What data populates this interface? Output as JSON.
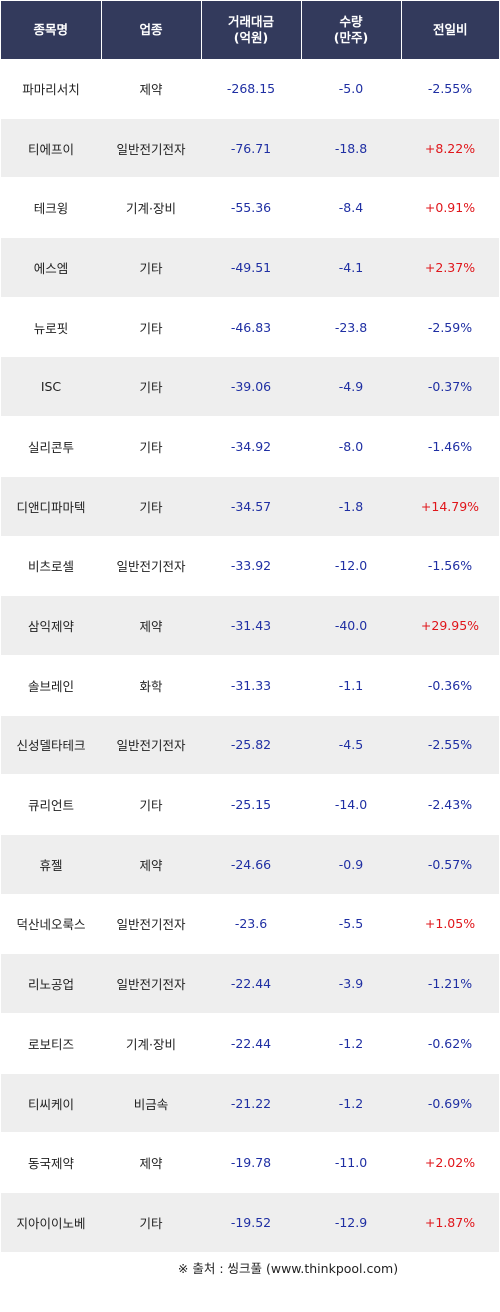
{
  "headers": {
    "name": "종목명",
    "sector": "업종",
    "amount_line1": "거래대금",
    "amount_line2": "(억원)",
    "volume_line1": "수량",
    "volume_line2": "(만주)",
    "change": "전일비"
  },
  "rows": [
    {
      "name": "파마리서치",
      "sector": "제약",
      "amount": "-268.15",
      "volume": "-5.0",
      "change": "-2.55%",
      "dir": "down"
    },
    {
      "name": "티에프이",
      "sector": "일반전기전자",
      "amount": "-76.71",
      "volume": "-18.8",
      "change": "+8.22%",
      "dir": "up"
    },
    {
      "name": "테크윙",
      "sector": "기계·장비",
      "amount": "-55.36",
      "volume": "-8.4",
      "change": "+0.91%",
      "dir": "up"
    },
    {
      "name": "에스엠",
      "sector": "기타",
      "amount": "-49.51",
      "volume": "-4.1",
      "change": "+2.37%",
      "dir": "up"
    },
    {
      "name": "뉴로핏",
      "sector": "기타",
      "amount": "-46.83",
      "volume": "-23.8",
      "change": "-2.59%",
      "dir": "down"
    },
    {
      "name": "ISC",
      "sector": "기타",
      "amount": "-39.06",
      "volume": "-4.9",
      "change": "-0.37%",
      "dir": "down"
    },
    {
      "name": "실리콘투",
      "sector": "기타",
      "amount": "-34.92",
      "volume": "-8.0",
      "change": "-1.46%",
      "dir": "down"
    },
    {
      "name": "디앤디파마텍",
      "sector": "기타",
      "amount": "-34.57",
      "volume": "-1.8",
      "change": "+14.79%",
      "dir": "up"
    },
    {
      "name": "비츠로셀",
      "sector": "일반전기전자",
      "amount": "-33.92",
      "volume": "-12.0",
      "change": "-1.56%",
      "dir": "down"
    },
    {
      "name": "삼익제약",
      "sector": "제약",
      "amount": "-31.43",
      "volume": "-40.0",
      "change": "+29.95%",
      "dir": "up"
    },
    {
      "name": "솔브레인",
      "sector": "화학",
      "amount": "-31.33",
      "volume": "-1.1",
      "change": "-0.36%",
      "dir": "down"
    },
    {
      "name": "신성델타테크",
      "sector": "일반전기전자",
      "amount": "-25.82",
      "volume": "-4.5",
      "change": "-2.55%",
      "dir": "down"
    },
    {
      "name": "큐리언트",
      "sector": "기타",
      "amount": "-25.15",
      "volume": "-14.0",
      "change": "-2.43%",
      "dir": "down"
    },
    {
      "name": "휴젤",
      "sector": "제약",
      "amount": "-24.66",
      "volume": "-0.9",
      "change": "-0.57%",
      "dir": "down"
    },
    {
      "name": "덕산네오룩스",
      "sector": "일반전기전자",
      "amount": "-23.6",
      "volume": "-5.5",
      "change": "+1.05%",
      "dir": "up"
    },
    {
      "name": "리노공업",
      "sector": "일반전기전자",
      "amount": "-22.44",
      "volume": "-3.9",
      "change": "-1.21%",
      "dir": "down"
    },
    {
      "name": "로보티즈",
      "sector": "기계·장비",
      "amount": "-22.44",
      "volume": "-1.2",
      "change": "-0.62%",
      "dir": "down"
    },
    {
      "name": "티씨케이",
      "sector": "비금속",
      "amount": "-21.22",
      "volume": "-1.2",
      "change": "-0.69%",
      "dir": "down"
    },
    {
      "name": "동국제약",
      "sector": "제약",
      "amount": "-19.78",
      "volume": "-11.0",
      "change": "+2.02%",
      "dir": "up"
    },
    {
      "name": "지아이이노베",
      "sector": "기타",
      "amount": "-19.52",
      "volume": "-12.9",
      "change": "+1.87%",
      "dir": "up"
    }
  ],
  "source": "※ 출처 : 씽크풀 (www.thinkpool.com)",
  "colors": {
    "header_bg": "#333a5c",
    "up": "#e0161b",
    "down": "#1f2fa3",
    "stripe": "#eeeeee"
  }
}
